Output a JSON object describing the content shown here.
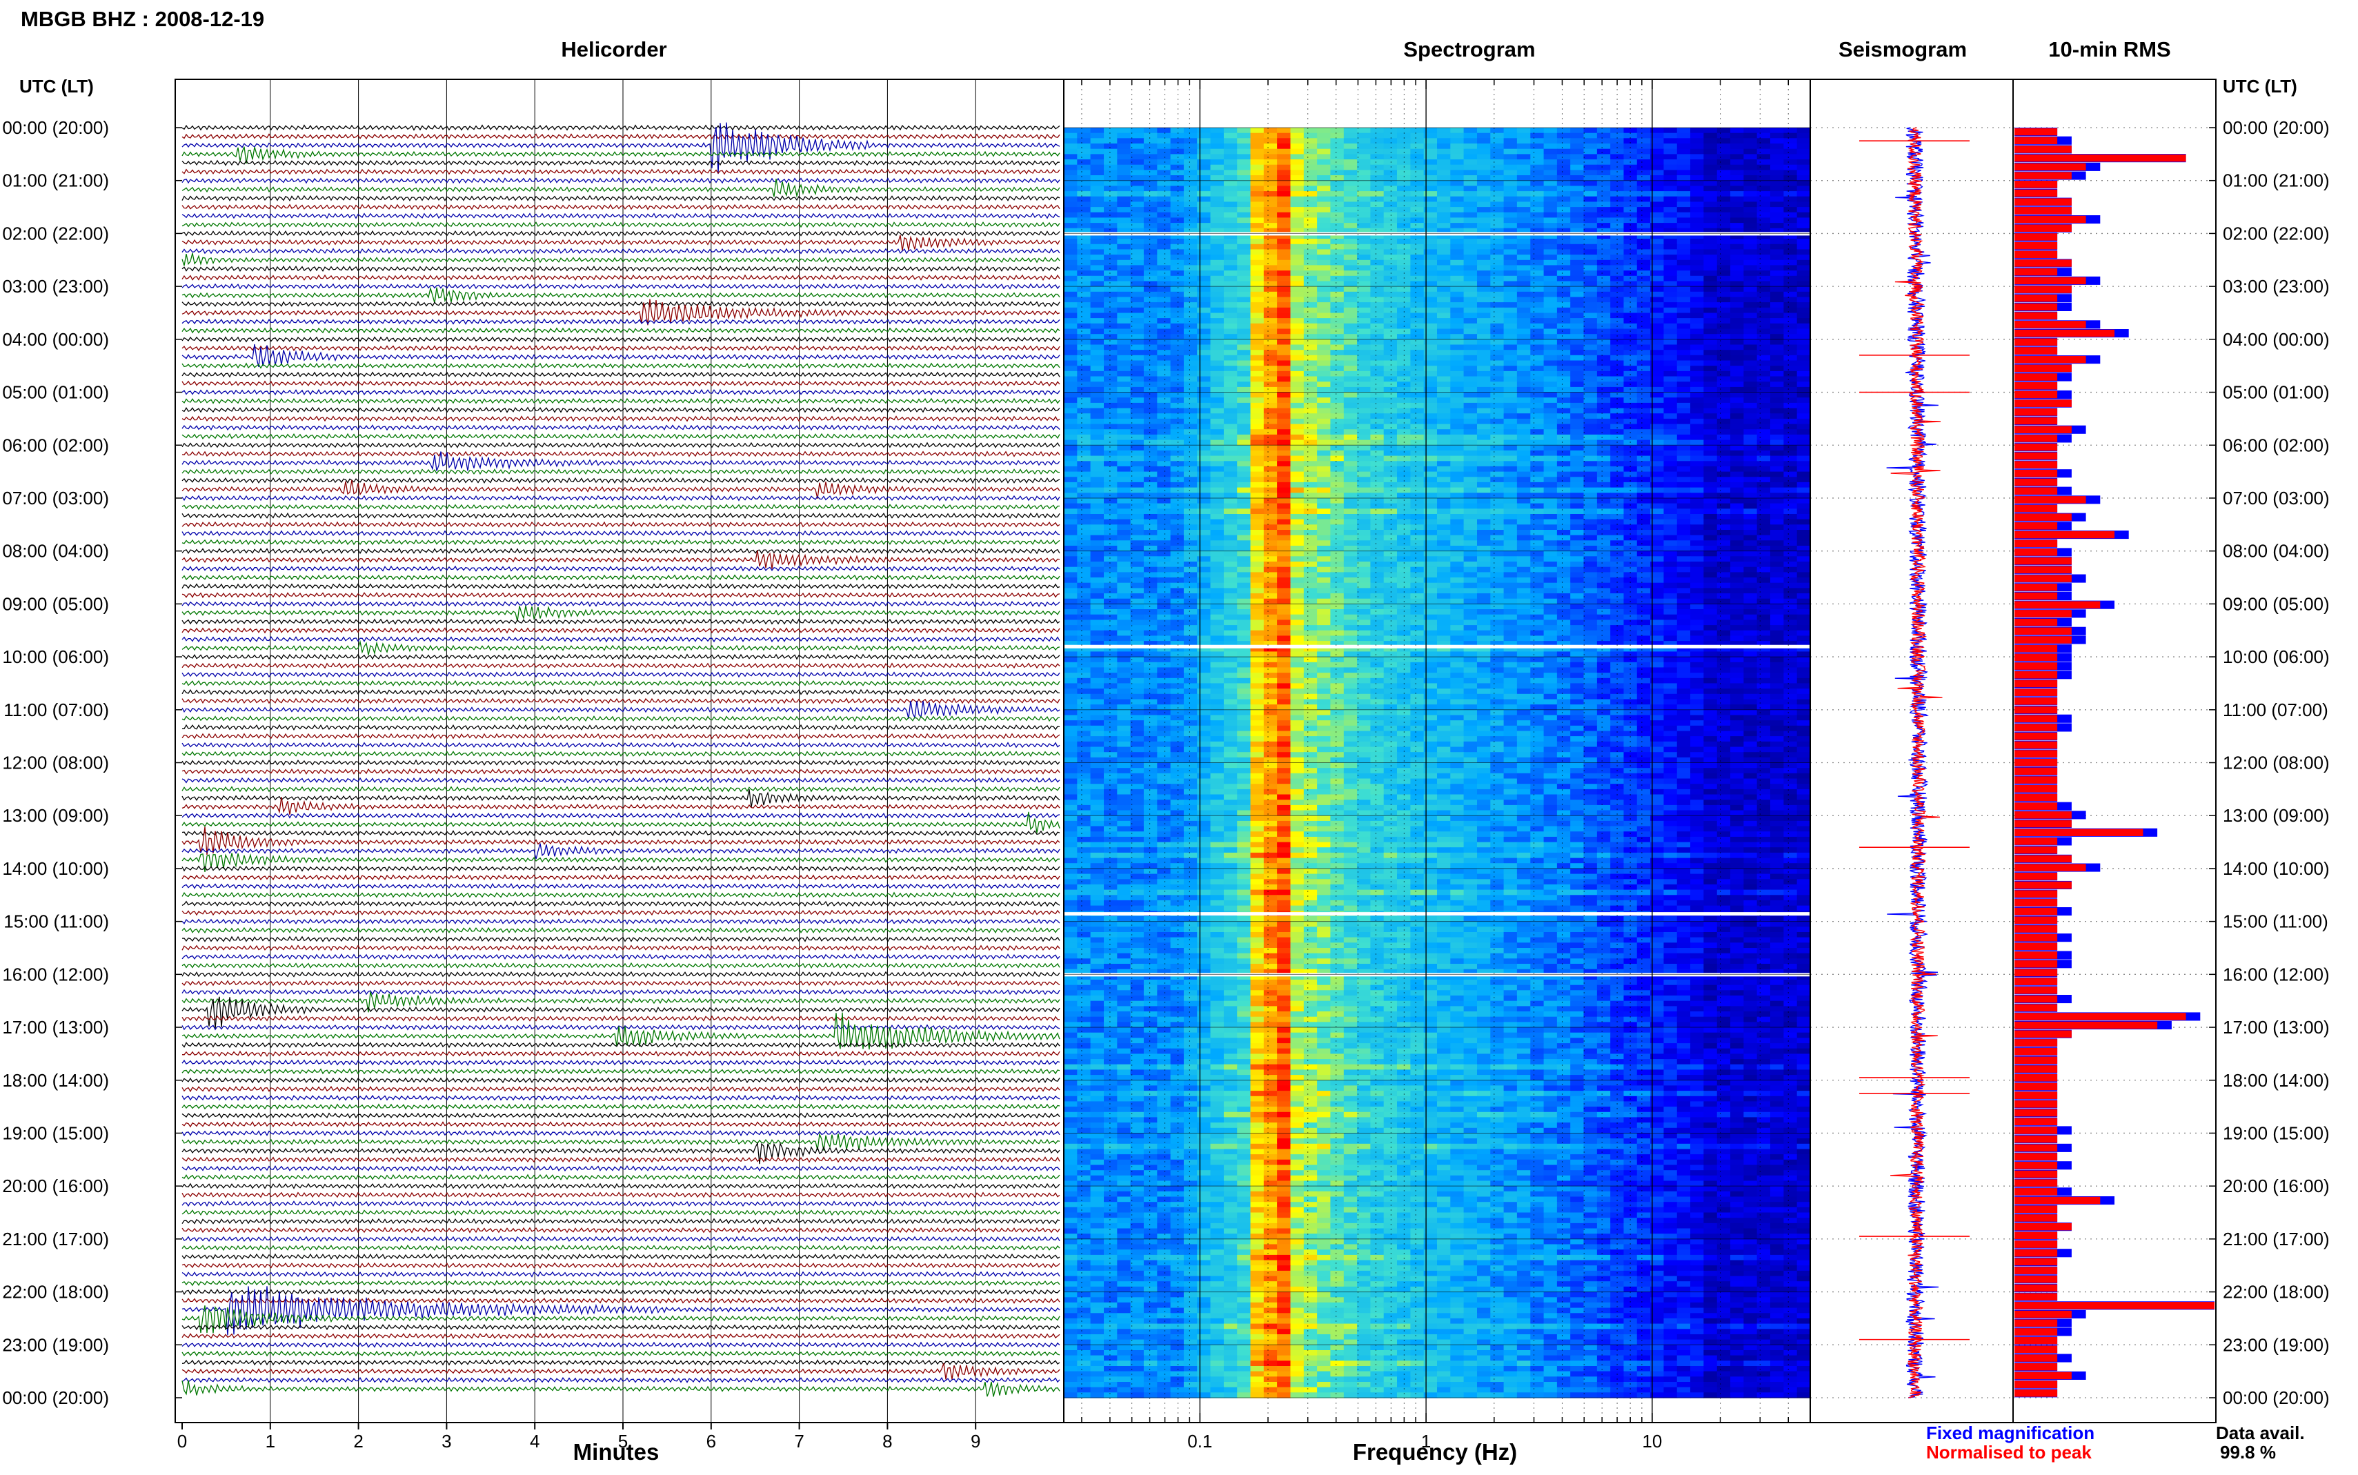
{
  "header": {
    "station_title": "MBGB BHZ : 2008-12-19",
    "left_time_header": "UTC (LT)",
    "right_time_header": "UTC (LT)"
  },
  "panels": {
    "helicorder": "Helicorder",
    "spectrogram": "Spectrogram",
    "seismogram": "Seismogram",
    "rms": "10-min RMS"
  },
  "legend": {
    "fixed": "Fixed magnification",
    "normalised": "Normalised to peak",
    "fixed_color": "#0000ff",
    "normalised_color": "#ff0000"
  },
  "data_availability": {
    "label": "Data avail.",
    "value": "99.8 %"
  },
  "colors": {
    "helicorder_traces": [
      "#000000",
      "#8b0000",
      "#0000aa",
      "#007700"
    ],
    "spectrogram_scale": [
      "#00008b",
      "#0000ff",
      "#00bfff",
      "#40e0d0",
      "#ffff00",
      "#ff8c00",
      "#ff0000"
    ]
  },
  "chart_data": [
    {
      "type": "helicorder",
      "xlabel": "Minutes",
      "x_ticks": [
        "0",
        "1",
        "2",
        "3",
        "4",
        "5",
        "6",
        "7",
        "8",
        "9"
      ],
      "xlim": [
        0,
        10
      ],
      "time_labels": [
        "00:00 (20:00)",
        "01:00 (21:00)",
        "02:00 (22:00)",
        "03:00 (23:00)",
        "04:00 (00:00)",
        "05:00 (01:00)",
        "06:00 (02:00)",
        "07:00 (03:00)",
        "08:00 (04:00)",
        "09:00 (05:00)",
        "10:00 (06:00)",
        "11:00 (07:00)",
        "12:00 (08:00)",
        "13:00 (09:00)",
        "14:00 (10:00)",
        "15:00 (11:00)",
        "16:00 (12:00)",
        "17:00 (13:00)",
        "18:00 (14:00)",
        "19:00 (15:00)",
        "20:00 (16:00)",
        "21:00 (17:00)",
        "22:00 (18:00)",
        "23:00 (19:00)",
        "00:00 (20:00)"
      ],
      "rows": 144,
      "row_minutes": 10,
      "events": [
        {
          "row": 2,
          "minute": 6.0,
          "amp": 3.2,
          "len": 1.8
        },
        {
          "row": 3,
          "minute": 0.6,
          "amp": 1.0,
          "len": 1.0
        },
        {
          "row": 7,
          "minute": 6.7,
          "amp": 1.0,
          "len": 1.0
        },
        {
          "row": 13,
          "minute": 8.1,
          "amp": 1.0,
          "len": 1.2
        },
        {
          "row": 15,
          "minute": 0.0,
          "amp": 0.8,
          "len": 0.5
        },
        {
          "row": 19,
          "minute": 2.8,
          "amp": 1.2,
          "len": 0.8
        },
        {
          "row": 21,
          "minute": 5.2,
          "amp": 1.4,
          "len": 2.5
        },
        {
          "row": 26,
          "minute": 0.8,
          "amp": 1.8,
          "len": 1.0
        },
        {
          "row": 38,
          "minute": 2.8,
          "amp": 1.0,
          "len": 2.0
        },
        {
          "row": 41,
          "minute": 1.8,
          "amp": 1.0,
          "len": 1.0
        },
        {
          "row": 41,
          "minute": 7.2,
          "amp": 1.0,
          "len": 1.0
        },
        {
          "row": 49,
          "minute": 6.5,
          "amp": 1.0,
          "len": 1.5
        },
        {
          "row": 55,
          "minute": 3.8,
          "amp": 0.9,
          "len": 1.0
        },
        {
          "row": 59,
          "minute": 2.0,
          "amp": 0.6,
          "len": 1.0
        },
        {
          "row": 66,
          "minute": 8.2,
          "amp": 1.2,
          "len": 1.5
        },
        {
          "row": 76,
          "minute": 6.4,
          "amp": 0.9,
          "len": 1.0
        },
        {
          "row": 77,
          "minute": 1.1,
          "amp": 0.8,
          "len": 1.0
        },
        {
          "row": 79,
          "minute": 9.6,
          "amp": 1.0,
          "len": 0.6
        },
        {
          "row": 81,
          "minute": 0.2,
          "amp": 1.6,
          "len": 1.2
        },
        {
          "row": 82,
          "minute": 4.0,
          "amp": 0.8,
          "len": 1.0
        },
        {
          "row": 83,
          "minute": 0.2,
          "amp": 1.0,
          "len": 1.5
        },
        {
          "row": 99,
          "minute": 2.1,
          "amp": 0.9,
          "len": 1.5
        },
        {
          "row": 100,
          "minute": 0.3,
          "amp": 2.2,
          "len": 1.2
        },
        {
          "row": 103,
          "minute": 4.9,
          "amp": 1.4,
          "len": 1.5
        },
        {
          "row": 103,
          "minute": 7.4,
          "amp": 2.2,
          "len": 2.6
        },
        {
          "row": 116,
          "minute": 6.5,
          "amp": 1.5,
          "len": 1.0
        },
        {
          "row": 115,
          "minute": 7.2,
          "amp": 0.9,
          "len": 2.0
        },
        {
          "row": 134,
          "minute": 0.5,
          "amp": 2.5,
          "len": 5.0
        },
        {
          "row": 135,
          "minute": 0.2,
          "amp": 2.0,
          "len": 1.5
        },
        {
          "row": 141,
          "minute": 8.6,
          "amp": 1.0,
          "len": 1.0
        },
        {
          "row": 143,
          "minute": 0.0,
          "amp": 0.8,
          "len": 0.8
        },
        {
          "row": 143,
          "minute": 9.1,
          "amp": 0.9,
          "len": 0.8
        }
      ]
    },
    {
      "type": "heatmap",
      "xlabel": "Frequency (Hz)",
      "x_scale": "log",
      "xlim": [
        0.025,
        50
      ],
      "x_ticks": [
        0.1,
        1,
        10
      ],
      "x_tick_labels": [
        "0.1",
        "1",
        "10"
      ],
      "gaps_utc_hours": [
        2.0,
        9.8,
        14.85,
        16.0
      ]
    },
    {
      "type": "line",
      "title": "Seismogram",
      "series": [
        {
          "name": "Fixed magnification"
        },
        {
          "name": "Normalised to peak"
        }
      ]
    },
    {
      "type": "bar",
      "title": "10-min RMS",
      "series": [
        {
          "name": "Fixed magnification",
          "values": [
            3,
            4,
            4,
            12,
            6,
            5,
            3,
            3,
            4,
            4,
            6,
            4,
            3,
            3,
            3,
            4,
            4,
            6,
            4,
            4,
            4,
            3,
            6,
            8,
            3,
            3,
            6,
            4,
            4,
            3,
            4,
            4,
            3,
            3,
            5,
            4,
            3,
            3,
            3,
            4,
            3,
            4,
            6,
            3,
            5,
            4,
            8,
            3,
            4,
            4,
            4,
            5,
            4,
            4,
            7,
            5,
            4,
            5,
            5,
            4,
            4,
            4,
            4,
            3,
            3,
            3,
            3,
            4,
            4,
            3,
            3,
            3,
            3,
            3,
            3,
            3,
            3,
            4,
            5,
            4,
            10,
            4,
            3,
            4,
            6,
            3,
            4,
            3,
            3,
            4,
            3,
            3,
            4,
            3,
            4,
            4,
            3,
            3,
            3,
            4,
            3,
            13,
            11,
            4,
            3,
            3,
            3,
            3,
            3,
            3,
            3,
            3,
            3,
            3,
            4,
            3,
            4,
            3,
            4,
            3,
            3,
            4,
            7,
            3,
            3,
            4,
            3,
            3,
            4,
            3,
            3,
            3,
            3,
            3,
            14,
            5,
            4,
            4,
            3,
            3,
            4,
            3,
            5,
            3,
            3
          ]
        },
        {
          "name": "Normalised to peak",
          "values": [
            3,
            3,
            4,
            12,
            5,
            4,
            3,
            3,
            4,
            4,
            5,
            4,
            3,
            3,
            3,
            4,
            3,
            5,
            4,
            3,
            3,
            3,
            5,
            7,
            3,
            3,
            5,
            4,
            3,
            3,
            3,
            4,
            3,
            3,
            4,
            3,
            3,
            3,
            3,
            3,
            3,
            3,
            5,
            3,
            4,
            3,
            7,
            3,
            3,
            4,
            4,
            4,
            3,
            3,
            6,
            4,
            3,
            4,
            4,
            3,
            3,
            3,
            3,
            3,
            3,
            3,
            3,
            3,
            3,
            3,
            3,
            3,
            3,
            3,
            3,
            3,
            3,
            3,
            4,
            4,
            9,
            3,
            3,
            4,
            5,
            3,
            4,
            3,
            3,
            3,
            3,
            3,
            3,
            3,
            3,
            3,
            3,
            3,
            3,
            3,
            3,
            12,
            10,
            4,
            3,
            3,
            3,
            3,
            3,
            3,
            3,
            3,
            3,
            3,
            3,
            3,
            3,
            3,
            3,
            3,
            3,
            3,
            6,
            3,
            3,
            4,
            3,
            3,
            3,
            3,
            3,
            3,
            3,
            3,
            14,
            4,
            3,
            3,
            3,
            3,
            3,
            3,
            4,
            3,
            3
          ]
        }
      ]
    }
  ]
}
